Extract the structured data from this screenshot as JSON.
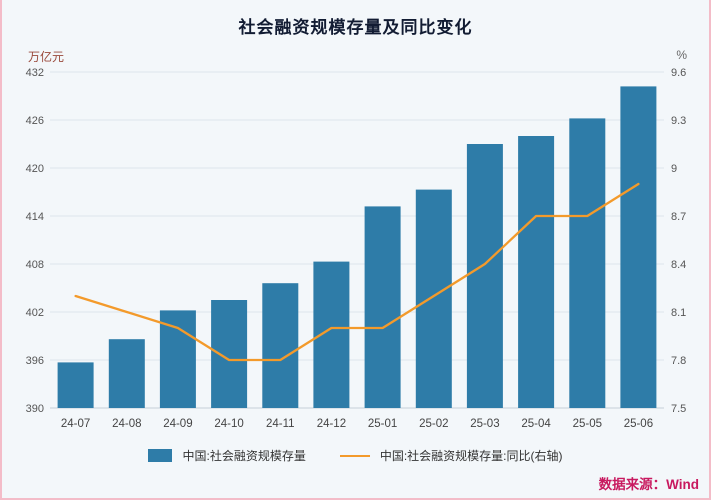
{
  "chart_data": {
    "type": "bar",
    "title": "社会融资规模存量及同比变化",
    "left_axis_unit": "万亿元",
    "right_axis_unit": "%",
    "categories": [
      "24-07",
      "24-08",
      "24-09",
      "24-10",
      "24-11",
      "24-12",
      "25-01",
      "25-02",
      "25-03",
      "25-04",
      "25-05",
      "25-06"
    ],
    "series": [
      {
        "name": "中国:社会融资规模存量",
        "type": "bar",
        "axis": "left",
        "values": [
          395.7,
          398.6,
          402.2,
          403.5,
          405.6,
          408.3,
          415.2,
          417.3,
          423.0,
          424.0,
          426.2,
          430.2
        ]
      },
      {
        "name": "中国:社会融资规模存量:同比(右轴)",
        "type": "line",
        "axis": "right",
        "values": [
          8.2,
          8.1,
          8.0,
          7.8,
          7.8,
          8.0,
          8.0,
          8.2,
          8.4,
          8.7,
          8.7,
          8.9
        ]
      }
    ],
    "left_axis": {
      "min": 390,
      "max": 432,
      "step": 6
    },
    "right_axis": {
      "min": 7.5,
      "max": 9.6,
      "step": 0.3
    },
    "grid": true,
    "legend_position": "bottom",
    "colors": {
      "bar": "#2e7ca8",
      "line": "#f39a2b",
      "source_text": "#c8195f"
    }
  },
  "source": "数据来源：Wind"
}
